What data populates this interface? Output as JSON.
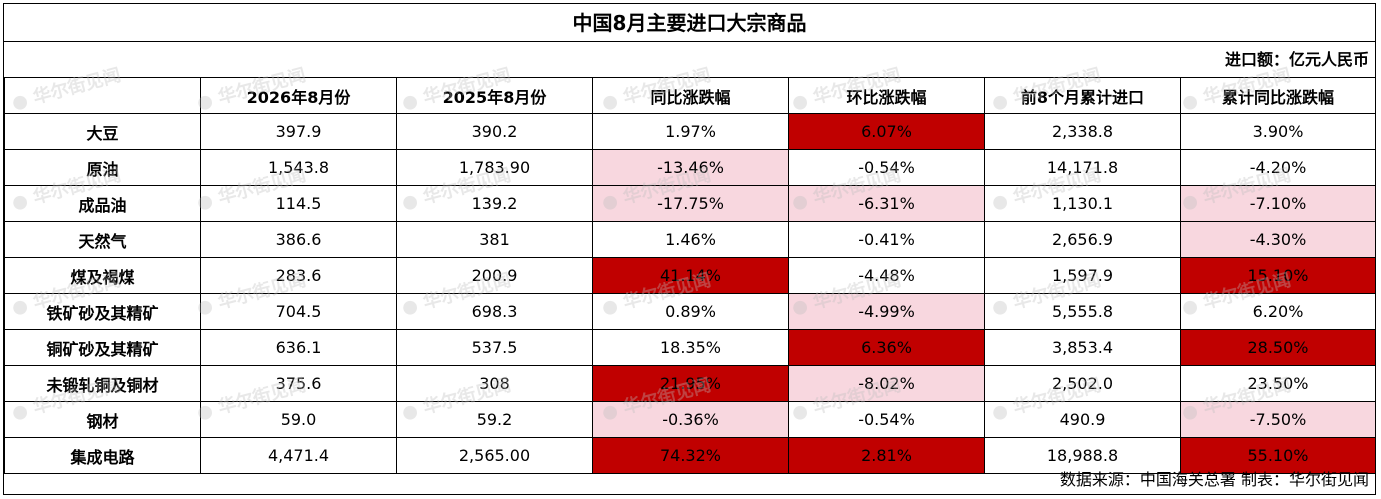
{
  "title": "中国8月主要进口大宗商品",
  "unit_note": "进口额：亿元人民币",
  "source_note": "数据来源：中国海关总署 制表：华尔街见闻",
  "watermark": "华尔街见闻",
  "colors": {
    "dark_red": "#c00000",
    "light_pink": "#f8d7df",
    "none": "#ffffff"
  },
  "chart_data": {
    "type": "table",
    "title": "中国8月主要进口大宗商品",
    "columns": [
      "",
      "2026年8月份",
      "2025年8月份",
      "同比涨跌幅",
      "环比涨跌幅",
      "前8个月累计进口",
      "累计同比涨跌幅"
    ],
    "rows": [
      {
        "name": "大豆",
        "cur": "397.9",
        "prev": "390.2",
        "yoy": "1.97%",
        "mom": "6.07%",
        "ytd": "2,338.8",
        "ytd_yoy": "3.90%",
        "hl": {
          "yoy": "none",
          "mom": "dark_red",
          "ytd_yoy": "none"
        }
      },
      {
        "name": "原油",
        "cur": "1,543.8",
        "prev": "1,783.90",
        "yoy": "-13.46%",
        "mom": "-0.54%",
        "ytd": "14,171.8",
        "ytd_yoy": "-4.20%",
        "hl": {
          "yoy": "light_pink",
          "mom": "none",
          "ytd_yoy": "none"
        }
      },
      {
        "name": "成品油",
        "cur": "114.5",
        "prev": "139.2",
        "yoy": "-17.75%",
        "mom": "-6.31%",
        "ytd": "1,130.1",
        "ytd_yoy": "-7.10%",
        "hl": {
          "yoy": "light_pink",
          "mom": "light_pink",
          "ytd_yoy": "light_pink"
        }
      },
      {
        "name": "天然气",
        "cur": "386.6",
        "prev": "381",
        "yoy": "1.46%",
        "mom": "-0.41%",
        "ytd": "2,656.9",
        "ytd_yoy": "-4.30%",
        "hl": {
          "yoy": "none",
          "mom": "none",
          "ytd_yoy": "light_pink"
        }
      },
      {
        "name": "煤及褐煤",
        "cur": "283.6",
        "prev": "200.9",
        "yoy": "41.14%",
        "mom": "-4.48%",
        "ytd": "1,597.9",
        "ytd_yoy": "15.10%",
        "hl": {
          "yoy": "dark_red",
          "mom": "none",
          "ytd_yoy": "dark_red"
        }
      },
      {
        "name": "铁矿砂及其精矿",
        "cur": "704.5",
        "prev": "698.3",
        "yoy": "0.89%",
        "mom": "-4.99%",
        "ytd": "5,555.8",
        "ytd_yoy": "6.20%",
        "hl": {
          "yoy": "none",
          "mom": "light_pink",
          "ytd_yoy": "none"
        }
      },
      {
        "name": "铜矿砂及其精矿",
        "cur": "636.1",
        "prev": "537.5",
        "yoy": "18.35%",
        "mom": "6.36%",
        "ytd": "3,853.4",
        "ytd_yoy": "28.50%",
        "hl": {
          "yoy": "none",
          "mom": "dark_red",
          "ytd_yoy": "dark_red"
        }
      },
      {
        "name": "未锻轧铜及铜材",
        "cur": "375.6",
        "prev": "308",
        "yoy": "21.95%",
        "mom": "-8.02%",
        "ytd": "2,502.0",
        "ytd_yoy": "23.50%",
        "hl": {
          "yoy": "dark_red",
          "mom": "light_pink",
          "ytd_yoy": "none"
        }
      },
      {
        "name": "钢材",
        "cur": "59.0",
        "prev": "59.2",
        "yoy": "-0.36%",
        "mom": "-0.54%",
        "ytd": "490.9",
        "ytd_yoy": "-7.50%",
        "hl": {
          "yoy": "light_pink",
          "mom": "none",
          "ytd_yoy": "light_pink"
        }
      },
      {
        "name": "集成电路",
        "cur": "4,471.4",
        "prev": "2,565.00",
        "yoy": "74.32%",
        "mom": "2.81%",
        "ytd": "18,988.8",
        "ytd_yoy": "55.10%",
        "hl": {
          "yoy": "dark_red",
          "mom": "dark_red",
          "ytd_yoy": "dark_red"
        }
      }
    ]
  }
}
